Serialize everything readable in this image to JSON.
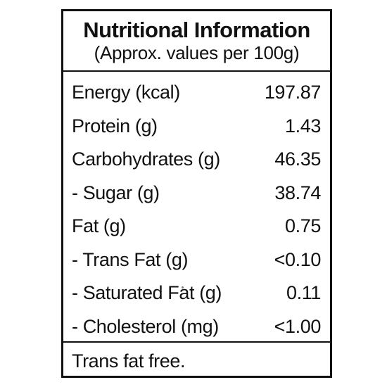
{
  "label": {
    "title": "Nutritional Information",
    "subtitle": "(Approx. values per 100g)",
    "rows": [
      {
        "name": "Energy (kcal)",
        "value": "197.87"
      },
      {
        "name": "Protein (g)",
        "value": "1.43"
      },
      {
        "name": "Carbohydrates (g)",
        "value": "46.35"
      },
      {
        "name": "- Sugar (g)",
        "value": "38.74"
      },
      {
        "name": "Fat (g)",
        "value": "0.75"
      },
      {
        "name": "- Trans Fat (g)",
        "value": "<0.10"
      },
      {
        "name": "- Saturated Fat (g)",
        "value": "0.11"
      },
      {
        "name": "- Cholesterol (mg)",
        "value": "<1.00"
      }
    ],
    "footer": "Trans fat free."
  }
}
